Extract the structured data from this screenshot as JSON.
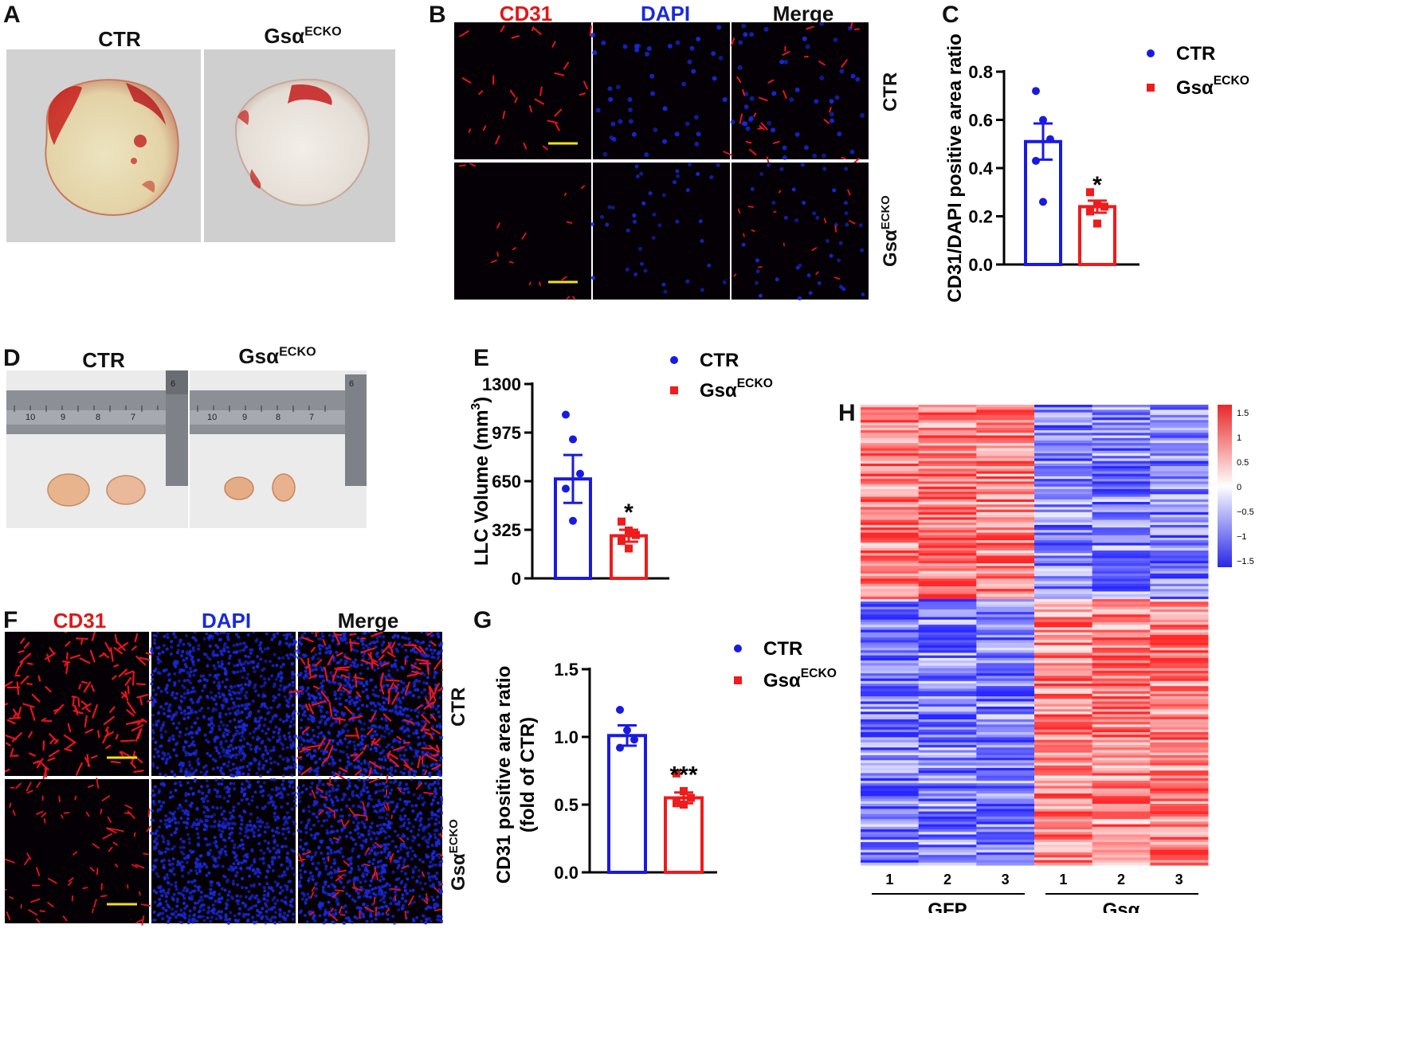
{
  "panels": {
    "A": {
      "label": "A",
      "col_left": "CTR",
      "col_right_base": "Gsα",
      "col_right_sup": "ECKO"
    },
    "B": {
      "label": "B",
      "col1": "CD31",
      "col2": "DAPI",
      "col3": "Merge",
      "row1": "CTR",
      "row2_base": "Gsα",
      "row2_sup": "ECKO"
    },
    "D": {
      "label": "D",
      "col_left": "CTR",
      "col_right_base": "Gsα",
      "col_right_sup": "ECKO",
      "ruler_left": [
        "10",
        "9",
        "8",
        "7",
        "6"
      ],
      "ruler_right": [
        "10",
        "9",
        "8",
        "7",
        "6"
      ]
    },
    "F": {
      "label": "F",
      "col1": "CD31",
      "col2": "DAPI",
      "col3": "Merge",
      "row1": "CTR",
      "row2_base": "Gsα",
      "row2_sup": "ECKO"
    },
    "H": {
      "label": "H",
      "group1": "GFP",
      "group2": "Gsα",
      "samples": [
        "1",
        "2",
        "3",
        "1",
        "2",
        "3"
      ],
      "colorbar_ticks": [
        "1.5",
        "1",
        "0.5",
        "0",
        "−0.5",
        "−1",
        "−1.5"
      ]
    }
  },
  "colors": {
    "ctr": "#1a1adf",
    "ecko": "#ee1c1c",
    "cd31": "#e8141e",
    "dapi": "#1a2ae0",
    "scale_bar": "#f0e020"
  },
  "chart_data": [
    {
      "panel": "C",
      "type": "bar",
      "categories": [
        "CTR",
        "GsαECKO"
      ],
      "values": [
        0.51,
        0.24
      ],
      "sem": [
        0.075,
        0.025
      ],
      "points": [
        [
          0.72,
          0.6,
          0.52,
          0.43,
          0.26
        ],
        [
          0.3,
          0.25,
          0.24,
          0.22,
          0.17
        ]
      ],
      "significance": "*",
      "ylabel": "CD31/DAPI positive area ratio",
      "ylim": [
        0.0,
        0.8
      ],
      "yticks": [
        "0.0",
        "0.2",
        "0.4",
        "0.6",
        "0.8"
      ],
      "legend": [
        {
          "name": "CTR",
          "sup": ""
        },
        {
          "name": "Gsα",
          "sup": "ECKO"
        }
      ]
    },
    {
      "panel": "E",
      "type": "bar",
      "categories": [
        "CTR",
        "GsαECKO"
      ],
      "values": [
        665,
        285
      ],
      "sem": [
        160,
        40
      ],
      "points": [
        [
          1095,
          930,
          700,
          600,
          385
        ],
        [
          380,
          320,
          290,
          250,
          200
        ]
      ],
      "significance": "*",
      "ylabel": "LLC Volume (mm",
      "ylabel_sup": "3",
      "ylabel_tail": ")",
      "ylim": [
        0,
        1300
      ],
      "yticks": [
        "0",
        "325",
        "650",
        "975",
        "1300"
      ],
      "legend": [
        {
          "name": "CTR",
          "sup": ""
        },
        {
          "name": "Gsα",
          "sup": "ECKO"
        }
      ]
    },
    {
      "panel": "G",
      "type": "bar",
      "categories": [
        "CTR",
        "GsαECKO"
      ],
      "values": [
        1.01,
        0.55
      ],
      "sem": [
        0.075,
        0.04
      ],
      "points": [
        [
          1.2,
          1.05,
          0.98,
          0.92
        ],
        [
          0.73,
          0.6,
          0.55,
          0.51,
          0.5
        ]
      ],
      "significance": "***",
      "ylabel": "CD31 positive area ratio",
      "ylabel2": "(fold of CTR)",
      "ylim": [
        0.0,
        1.5
      ],
      "yticks": [
        "0.0",
        "0.5",
        "1.0",
        "1.5"
      ],
      "legend": [
        {
          "name": "CTR",
          "sup": ""
        },
        {
          "name": "Gsα",
          "sup": "ECKO"
        }
      ]
    },
    {
      "panel": "H",
      "type": "heatmap",
      "columns": [
        "GFP 1",
        "GFP 2",
        "GFP 3",
        "Gsα 1",
        "Gsα 2",
        "Gsα 3"
      ],
      "color_range": [
        -1.5,
        1.5
      ],
      "blocks": [
        {
          "rows": "upper",
          "GFP": "high",
          "Gsα": "low"
        },
        {
          "rows": "lower",
          "GFP": "low",
          "Gsα": "high"
        }
      ]
    }
  ]
}
